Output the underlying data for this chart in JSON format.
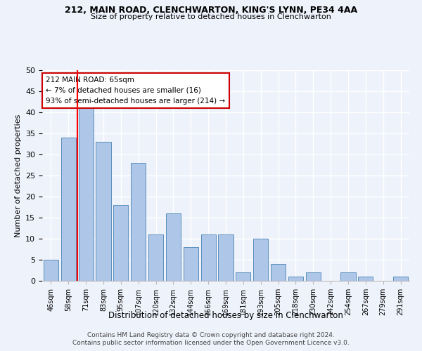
{
  "title1": "212, MAIN ROAD, CLENCHWARTON, KING'S LYNN, PE34 4AA",
  "title2": "Size of property relative to detached houses in Clenchwarton",
  "xlabel": "Distribution of detached houses by size in Clenchwarton",
  "ylabel": "Number of detached properties",
  "categories": [
    "46sqm",
    "58sqm",
    "71sqm",
    "83sqm",
    "95sqm",
    "107sqm",
    "120sqm",
    "132sqm",
    "144sqm",
    "156sqm",
    "169sqm",
    "181sqm",
    "193sqm",
    "205sqm",
    "218sqm",
    "230sqm",
    "242sqm",
    "254sqm",
    "267sqm",
    "279sqm",
    "291sqm"
  ],
  "values": [
    5,
    34,
    42,
    33,
    18,
    28,
    11,
    16,
    8,
    11,
    11,
    2,
    10,
    4,
    1,
    2,
    0,
    2,
    1,
    0,
    1
  ],
  "bar_color": "#aec6e8",
  "bar_edge_color": "#5a8fbb",
  "annotation_text_line1": "212 MAIN ROAD: 65sqm",
  "annotation_text_line2": "← 7% of detached houses are smaller (16)",
  "annotation_text_line3": "93% of semi-detached houses are larger (214) →",
  "annotation_box_color": "#ffffff",
  "annotation_box_edge_color": "#cc0000",
  "red_line_x": 1.5,
  "ylim": [
    0,
    50
  ],
  "yticks": [
    0,
    5,
    10,
    15,
    20,
    25,
    30,
    35,
    40,
    45,
    50
  ],
  "footer_line1": "Contains HM Land Registry data © Crown copyright and database right 2024.",
  "footer_line2": "Contains public sector information licensed under the Open Government Licence v3.0.",
  "bg_color": "#eef2fb",
  "grid_color": "#ffffff"
}
